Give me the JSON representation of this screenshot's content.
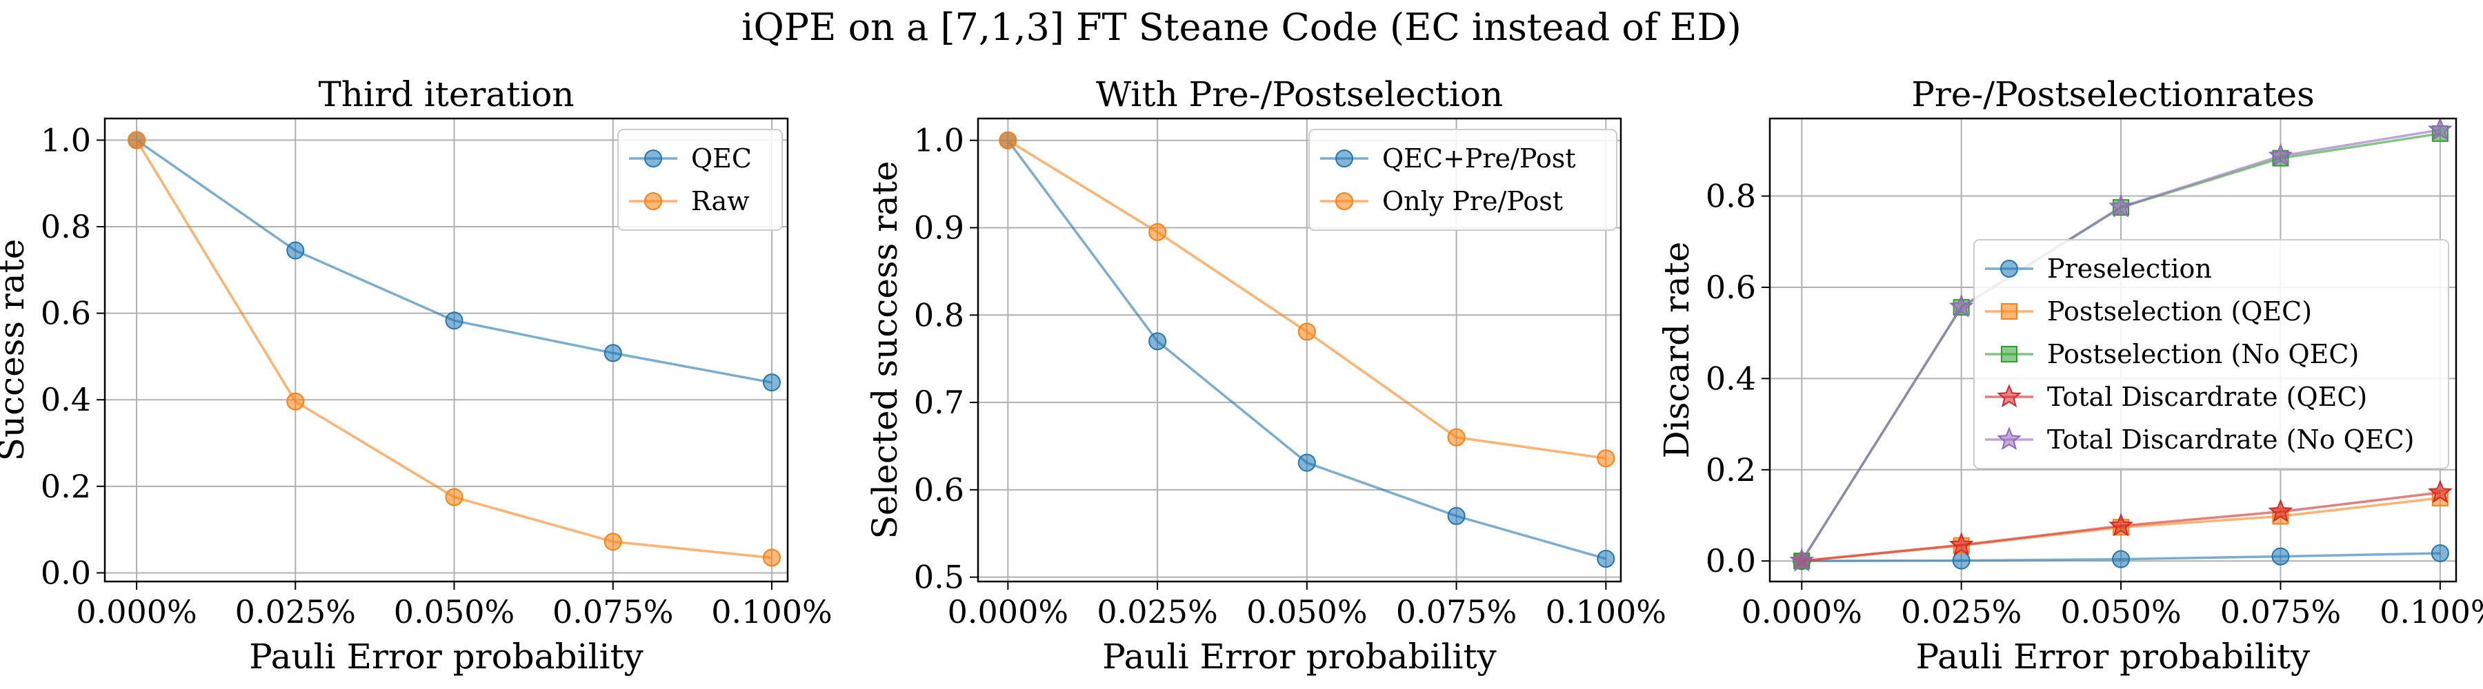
{
  "figure_title": "iQPE on a [7,1,3] FT Steane Code (EC instead of ED)",
  "chart_data": [
    {
      "type": "line",
      "title": "Third iteration",
      "xlabel": "Pauli Error probability",
      "ylabel": "Success rate",
      "x": [
        0.0,
        0.025,
        0.05,
        0.075,
        0.1
      ],
      "x_tick_labels": [
        "0.000%",
        "0.025%",
        "0.050%",
        "0.075%",
        "0.100%"
      ],
      "xlim": [
        -0.005,
        0.1025
      ],
      "ylim": [
        -0.02,
        1.05
      ],
      "y_ticks": [
        0.0,
        0.2,
        0.4,
        0.6,
        0.8,
        1.0
      ],
      "y_tick_labels": [
        "0.0",
        "0.2",
        "0.4",
        "0.6",
        "0.8",
        "1.0"
      ],
      "grid": true,
      "legend_position": "top-right",
      "series": [
        {
          "name": "QEC",
          "color": "#1f77b4",
          "marker": "circle",
          "values": [
            1.0,
            0.745,
            0.583,
            0.508,
            0.44
          ]
        },
        {
          "name": "Raw",
          "color": "#ff7f0e",
          "marker": "circle",
          "values": [
            1.0,
            0.396,
            0.175,
            0.072,
            0.035
          ]
        }
      ]
    },
    {
      "type": "line",
      "title": "With Pre-/Postselection",
      "xlabel": "Pauli Error probability",
      "ylabel": "Selected success rate",
      "x": [
        0.0,
        0.025,
        0.05,
        0.075,
        0.1
      ],
      "x_tick_labels": [
        "0.000%",
        "0.025%",
        "0.050%",
        "0.075%",
        "0.100%"
      ],
      "xlim": [
        -0.005,
        0.1025
      ],
      "ylim": [
        0.495,
        1.025
      ],
      "y_ticks": [
        0.5,
        0.6,
        0.7,
        0.8,
        0.9,
        1.0
      ],
      "y_tick_labels": [
        "0.5",
        "0.6",
        "0.7",
        "0.8",
        "0.9",
        "1.0"
      ],
      "grid": true,
      "legend_position": "top-right",
      "series": [
        {
          "name": "QEC+Pre/Post",
          "color": "#1f77b4",
          "marker": "circle",
          "values": [
            1.0,
            0.77,
            0.631,
            0.57,
            0.521
          ]
        },
        {
          "name": "Only Pre/Post",
          "color": "#ff7f0e",
          "marker": "circle",
          "values": [
            1.0,
            0.895,
            0.781,
            0.66,
            0.636
          ]
        }
      ]
    },
    {
      "type": "line",
      "title": "Pre-/Postselectionrates",
      "xlabel": "Pauli Error probability",
      "ylabel": "Discard rate",
      "x": [
        0.0,
        0.025,
        0.05,
        0.075,
        0.1
      ],
      "x_tick_labels": [
        "0.000%",
        "0.025%",
        "0.050%",
        "0.075%",
        "0.100%"
      ],
      "xlim": [
        -0.005,
        0.1025
      ],
      "ylim": [
        -0.045,
        0.97
      ],
      "y_ticks": [
        0.0,
        0.2,
        0.4,
        0.6,
        0.8
      ],
      "y_tick_labels": [
        "0.0",
        "0.2",
        "0.4",
        "0.6",
        "0.8"
      ],
      "grid": true,
      "legend_position": "center-right",
      "series": [
        {
          "name": "Preselection",
          "color": "#1f77b4",
          "marker": "circle",
          "values": [
            0.0,
            0.001,
            0.004,
            0.01,
            0.017
          ]
        },
        {
          "name": "Postselection (QEC)",
          "color": "#ff7f0e",
          "marker": "square",
          "values": [
            0.0,
            0.034,
            0.074,
            0.098,
            0.138
          ]
        },
        {
          "name": "Postselection (No QEC)",
          "color": "#2ca02c",
          "marker": "square",
          "values": [
            0.0,
            0.556,
            0.775,
            0.883,
            0.937
          ]
        },
        {
          "name": "Total Discardrate (QEC)",
          "color": "#d62728",
          "marker": "star",
          "values": [
            0.0,
            0.035,
            0.077,
            0.108,
            0.15
          ]
        },
        {
          "name": "Total Discardrate (No QEC)",
          "color": "#9467bd",
          "marker": "star",
          "values": [
            0.0,
            0.557,
            0.776,
            0.888,
            0.945
          ]
        }
      ]
    }
  ]
}
